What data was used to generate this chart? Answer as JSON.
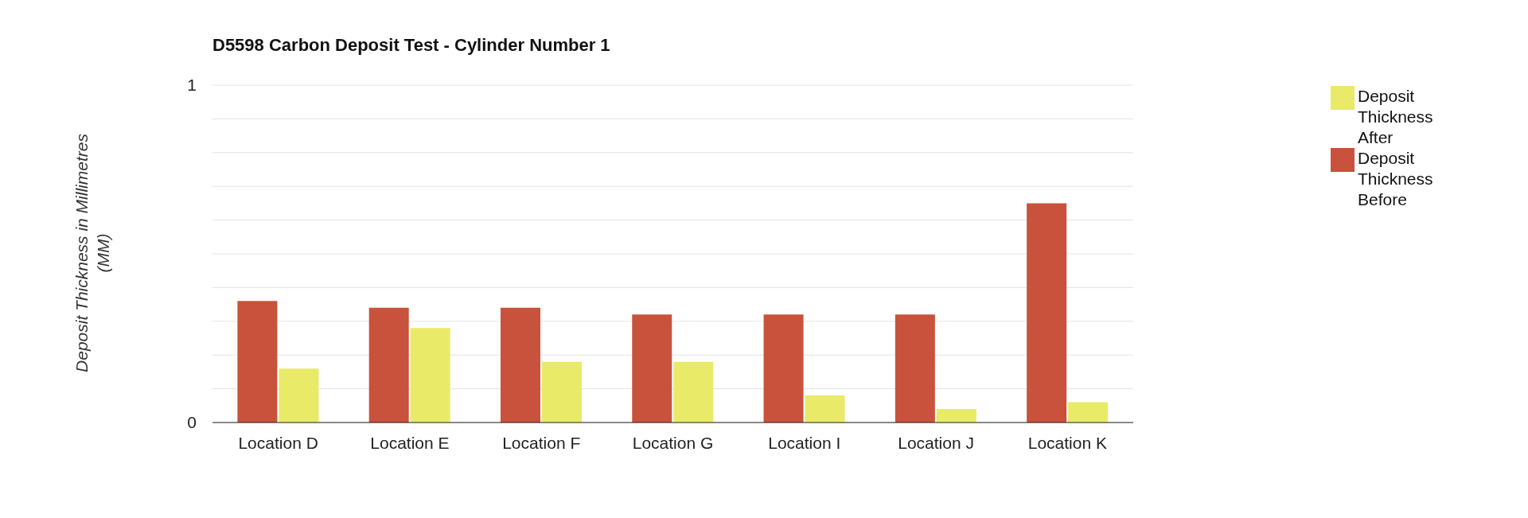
{
  "chart_data": {
    "type": "bar",
    "title": "D5598 Carbon Deposit Test - Cylinder Number 1",
    "ylabel": "Deposit Thickness in Millimetres (MM)",
    "categories": [
      "Location D",
      "Location E",
      "Location F",
      "Location G",
      "Location I",
      "Location J",
      "Location K"
    ],
    "series": [
      {
        "name": "Deposit Thickness Before",
        "color": "#c8523b",
        "values": [
          0.36,
          0.34,
          0.34,
          0.32,
          0.32,
          0.32,
          0.65
        ]
      },
      {
        "name": "Deposit Thickness After",
        "color": "#e9ea68",
        "values": [
          0.16,
          0.28,
          0.18,
          0.18,
          0.08,
          0.04,
          0.06
        ]
      }
    ],
    "ylim": [
      0,
      1
    ],
    "yticks": [
      0,
      {
        "value": 0.1,
        "label": null
      },
      {
        "value": 0.2,
        "label": null
      },
      {
        "value": 0.3,
        "label": null
      },
      {
        "value": 0.4,
        "label": null
      },
      {
        "value": 0.5,
        "label": null
      },
      {
        "value": 0.6,
        "label": null
      },
      {
        "value": 0.7,
        "label": null
      },
      {
        "value": 0.8,
        "label": null
      },
      {
        "value": 0.9,
        "label": null
      },
      1
    ],
    "grid": "y",
    "legend": "top right"
  }
}
